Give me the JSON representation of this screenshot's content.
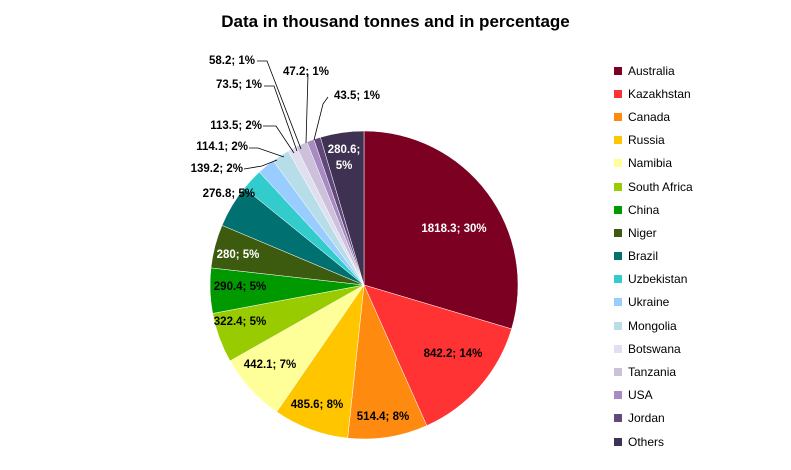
{
  "chart_data": {
    "type": "pie",
    "title": "Data in thousand tonnes and in percentage",
    "legend_position": "right",
    "slices": [
      {
        "name": "Australia",
        "value": 1818.3,
        "label": "1818.3; 30%",
        "color": "#7b0021"
      },
      {
        "name": "Kazakhstan",
        "value": 842.2,
        "label": "842.2; 14%",
        "color": "#ff3333"
      },
      {
        "name": "Canada",
        "value": 514.4,
        "label": "514.4; 8%",
        "color": "#ff8a10"
      },
      {
        "name": "Russia",
        "value": 485.6,
        "label": "485.6; 8%",
        "color": "#ffc600"
      },
      {
        "name": "Namibia",
        "value": 442.1,
        "label": "442.1; 7%",
        "color": "#ffff99"
      },
      {
        "name": "South Africa",
        "value": 322.4,
        "label": "322.4; 5%",
        "color": "#99cc00"
      },
      {
        "name": "China",
        "value": 290.4,
        "label": "290.4; 5%",
        "color": "#009900"
      },
      {
        "name": "Niger",
        "value": 280,
        "label": "280; 5%",
        "color": "#3d5b0e"
      },
      {
        "name": "Brazil",
        "value": 276.8,
        "label": "276.8; 5%",
        "color": "#007070"
      },
      {
        "name": "Uzbekistan",
        "value": 139.2,
        "label": "139.2; 2%",
        "color": "#33cccc"
      },
      {
        "name": "Ukraine",
        "value": 114.1,
        "label": "114.1; 2%",
        "color": "#99ccff"
      },
      {
        "name": "Mongolia",
        "value": 113.5,
        "label": "113.5; 2%",
        "color": "#b7dee8"
      },
      {
        "name": "Botswana",
        "value": 58.2,
        "label": "58.2; 1%",
        "color": "#e0dff0"
      },
      {
        "name": "Tanzania",
        "value": 73.5,
        "label": "73.5; 1%",
        "color": "#ccc0da"
      },
      {
        "name": "USA",
        "value": 47.2,
        "label": "47.2; 1%",
        "color": "#a98bc4"
      },
      {
        "name": "Jordan",
        "value": 43.5,
        "label": "43.5; 1%",
        "color": "#60497a"
      },
      {
        "name": "Others",
        "value": 280.6,
        "label": "280.6; 5%",
        "color": "#3f3151"
      }
    ]
  }
}
